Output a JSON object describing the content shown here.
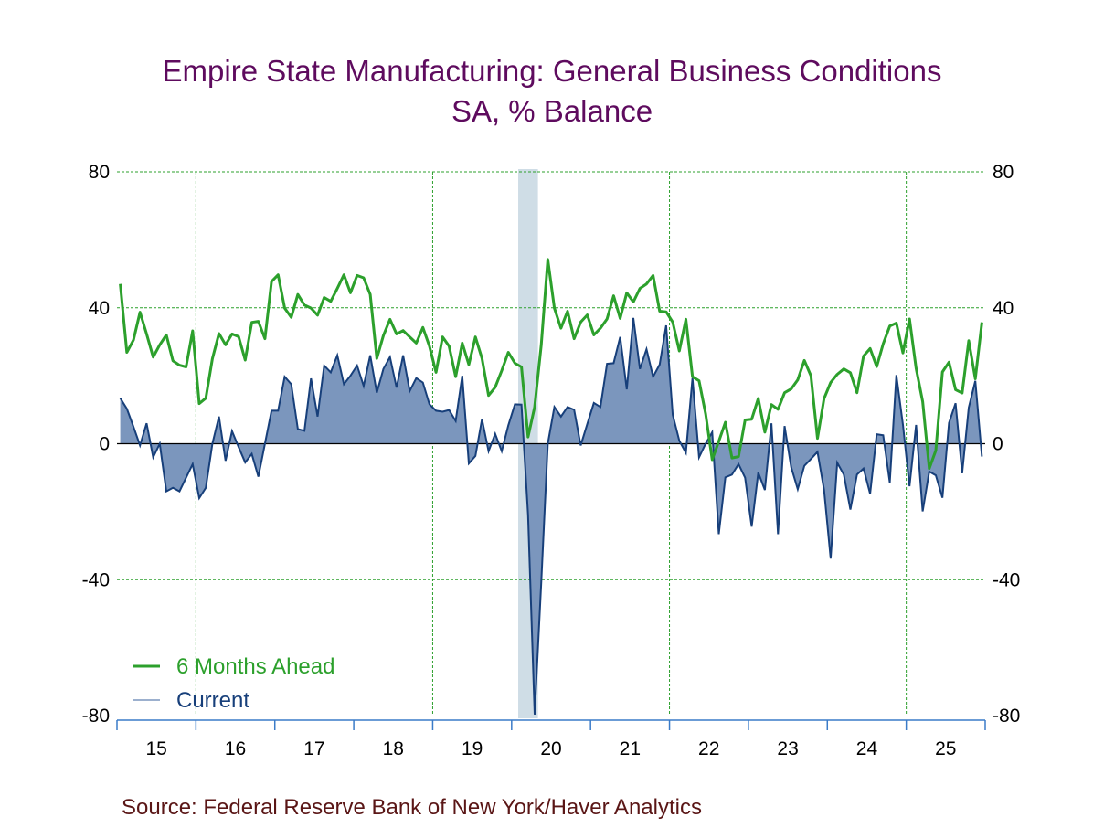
{
  "chart_data": {
    "type": "area",
    "title": "Empire State Manufacturing: General Business Conditions",
    "subtitle": "SA, % Balance",
    "source": "Source:  Federal Reserve Bank of New York/Haver Analytics",
    "ylim": [
      -80,
      80
    ],
    "yticks": [
      "80",
      "40",
      "0",
      "-40",
      "-80"
    ],
    "xtick_labels": [
      "15",
      "16",
      "17",
      "18",
      "19",
      "20",
      "21",
      "22",
      "23",
      "24",
      "25"
    ],
    "grid": true,
    "legend_position": "bottom-left",
    "recession_shading": [
      "2020-02",
      "2020-04"
    ],
    "x_start": "2015-01",
    "x_frequency": "monthly",
    "series": [
      {
        "name": "6 Months Ahead",
        "type": "line",
        "color": "#2ca02c",
        "values": [
          47,
          26.9,
          30.5,
          38.7,
          32.3,
          25.5,
          29.1,
          32,
          24.4,
          23.1,
          22.6,
          33.2,
          11.8,
          13.4,
          25,
          32.4,
          29.1,
          32.3,
          31.5,
          24.6,
          35.7,
          36,
          30.9,
          47.7,
          49.7,
          39.9,
          37.2,
          43.9,
          40.8,
          39.9,
          37.8,
          43,
          41.9,
          45.7,
          49.7,
          44.4,
          49.5,
          48.8,
          43.9,
          25.1,
          31.8,
          36.6,
          32.3,
          33.3,
          31.4,
          29.6,
          34.2,
          28.7,
          21,
          31.4,
          28.7,
          19.7,
          29.6,
          23.3,
          31.4,
          25.1,
          14.2,
          16.6,
          21.5,
          26.9,
          23.7,
          22.6,
          2,
          10.8,
          29,
          54.2,
          39.9,
          34,
          39,
          30.9,
          35.8,
          37.9,
          32,
          34,
          36.7,
          43.5,
          36.9,
          44.4,
          41.7,
          45.7,
          47,
          49.5,
          39,
          38.8,
          35.8,
          27.3,
          36.6,
          19.7,
          18.5,
          8.8,
          -4.7,
          0.7,
          6.3,
          -4.2,
          -3.8,
          7,
          7.2,
          13.3,
          3.4,
          11.5,
          10.1,
          15,
          16.1,
          18.8,
          24.5,
          20,
          1.6,
          13.3,
          18,
          20.4,
          22,
          20.9,
          15,
          25.8,
          28,
          22.7,
          29.4,
          34.6,
          35.5,
          26.7,
          36.7,
          22.2,
          12.4,
          -7.3,
          -2,
          21.1,
          24,
          15.9,
          14.9,
          30.3,
          19.1,
          35.7
        ]
      },
      {
        "name": "Current",
        "type": "area",
        "color": "#173f7a",
        "fill": "#7b96bd",
        "values": [
          13.4,
          10.3,
          5,
          -0.5,
          6,
          -4,
          0,
          -14,
          -13,
          -14,
          -10,
          -6,
          -16,
          -13,
          0,
          8,
          -5,
          3.7,
          -1,
          -5.5,
          -3,
          -9.7,
          0,
          9.7,
          9.7,
          19.7,
          17.5,
          4.3,
          3.8,
          19.2,
          8,
          23,
          21,
          26,
          17.5,
          20,
          23,
          17,
          26,
          15,
          22,
          25.5,
          16.5,
          26,
          15.5,
          19.3,
          18,
          11.6,
          9.7,
          9.4,
          9.9,
          6.7,
          20,
          -5.8,
          -3.6,
          7.2,
          -2.2,
          2.9,
          -2.2,
          5.4,
          11.6,
          11.5,
          -21,
          -79.7,
          -41,
          0,
          10.8,
          8,
          10.8,
          10,
          -0.5,
          5.8,
          12,
          10.8,
          23.5,
          23.7,
          31.4,
          16,
          37,
          22,
          27.8,
          19.7,
          23.3,
          34.8,
          8.5,
          0.9,
          -2.7,
          19.3,
          -4,
          0,
          3.4,
          -26.6,
          -9.9,
          -9.1,
          -6,
          -10,
          -24.4,
          -8.5,
          -13.6,
          6,
          -26.6,
          5.2,
          -6.9,
          -13.4,
          -6.5,
          -4.5,
          -2.4,
          -13.6,
          -33.8,
          -5.6,
          -9.1,
          -19.4,
          -9.1,
          -7.3,
          -14.7,
          2.8,
          2.5,
          -11.4,
          20.2,
          5.6,
          -12.5,
          5.5,
          -19.9,
          -8.2,
          -9.3,
          -15.9,
          6.1,
          11.9,
          -8.7,
          10.6,
          18.5,
          -3.8
        ]
      }
    ]
  }
}
